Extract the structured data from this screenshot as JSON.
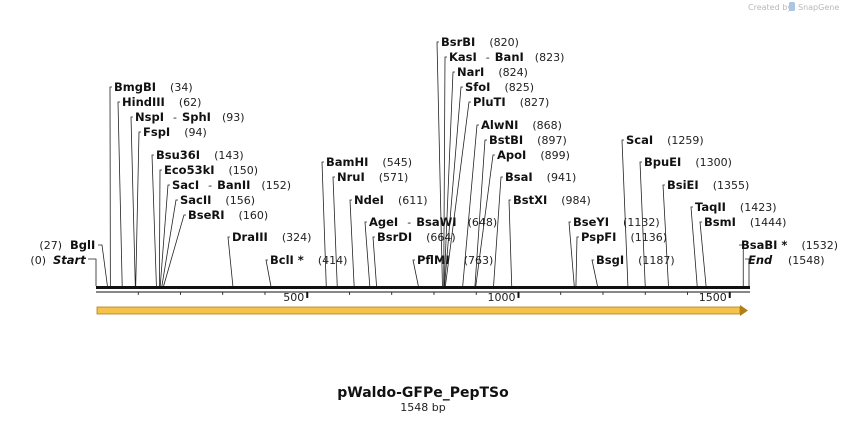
{
  "map": {
    "title": "pWaldo-GFPe_PepTSo",
    "size_label": "1548 bp",
    "total_bp": 1548,
    "credit": "Created by",
    "brand": "SnapGene",
    "start_label": "Start",
    "start_pos": "(0)",
    "end_label": "End",
    "end_pos": "(1548)",
    "ticks": [
      {
        "value": 500,
        "label": "500"
      },
      {
        "value": 1000,
        "label": "1000"
      },
      {
        "value": 1500,
        "label": "1500"
      }
    ],
    "feature_color": "#f5c24b",
    "sites": [
      {
        "name": "BglI",
        "extra": "",
        "pos_label": "(27)",
        "bp": 27
      },
      {
        "name": "BmgBI",
        "extra": "",
        "pos_label": "(34)",
        "bp": 34
      },
      {
        "name": "HindIII",
        "extra": "",
        "pos_label": "(62)",
        "bp": 62
      },
      {
        "name": "NspI",
        "extra": "SphI",
        "pos_label": "(93)",
        "bp": 93
      },
      {
        "name": "FspI",
        "extra": "",
        "pos_label": "(94)",
        "bp": 94
      },
      {
        "name": "Bsu36I",
        "extra": "",
        "pos_label": "(143)",
        "bp": 143
      },
      {
        "name": "Eco53kI",
        "extra": "",
        "pos_label": "(150)",
        "bp": 150
      },
      {
        "name": "SacI",
        "extra": "BanII",
        "pos_label": "(152)",
        "bp": 152
      },
      {
        "name": "SacII",
        "extra": "",
        "pos_label": "(156)",
        "bp": 156
      },
      {
        "name": "BseRI",
        "extra": "",
        "pos_label": "(160)",
        "bp": 160
      },
      {
        "name": "DraIII",
        "extra": "",
        "pos_label": "(324)",
        "bp": 324
      },
      {
        "name": "BclI *",
        "extra": "",
        "pos_label": "(414)",
        "bp": 414
      },
      {
        "name": "BamHI",
        "extra": "",
        "pos_label": "(545)",
        "bp": 545
      },
      {
        "name": "NruI",
        "extra": "",
        "pos_label": "(571)",
        "bp": 571
      },
      {
        "name": "NdeI",
        "extra": "",
        "pos_label": "(611)",
        "bp": 611
      },
      {
        "name": "AgeI",
        "extra": "BsaWI",
        "pos_label": "(648)",
        "bp": 648
      },
      {
        "name": "BsrDI",
        "extra": "",
        "pos_label": "(664)",
        "bp": 664
      },
      {
        "name": "PflMI",
        "extra": "",
        "pos_label": "(763)",
        "bp": 763
      },
      {
        "name": "BsrBI",
        "extra": "",
        "pos_label": "(820)",
        "bp": 820
      },
      {
        "name": "KasI",
        "extra": "BanI",
        "pos_label": "(823)",
        "bp": 823
      },
      {
        "name": "NarI",
        "extra": "",
        "pos_label": "(824)",
        "bp": 824
      },
      {
        "name": "SfoI",
        "extra": "",
        "pos_label": "(825)",
        "bp": 825
      },
      {
        "name": "PluTI",
        "extra": "",
        "pos_label": "(827)",
        "bp": 827
      },
      {
        "name": "AlwNI",
        "extra": "",
        "pos_label": "(868)",
        "bp": 868
      },
      {
        "name": "BstBI",
        "extra": "",
        "pos_label": "(897)",
        "bp": 897
      },
      {
        "name": "ApoI",
        "extra": "",
        "pos_label": "(899)",
        "bp": 899
      },
      {
        "name": "BsaI",
        "extra": "",
        "pos_label": "(941)",
        "bp": 941
      },
      {
        "name": "BstXI",
        "extra": "",
        "pos_label": "(984)",
        "bp": 984
      },
      {
        "name": "BseYI",
        "extra": "",
        "pos_label": "(1132)",
        "bp": 1132
      },
      {
        "name": "PspFI",
        "extra": "",
        "pos_label": "(1136)",
        "bp": 1136
      },
      {
        "name": "BsgI",
        "extra": "",
        "pos_label": "(1187)",
        "bp": 1187
      },
      {
        "name": "ScaI",
        "extra": "",
        "pos_label": "(1259)",
        "bp": 1259
      },
      {
        "name": "BpuEI",
        "extra": "",
        "pos_label": "(1300)",
        "bp": 1300
      },
      {
        "name": "BsiEI",
        "extra": "",
        "pos_label": "(1355)",
        "bp": 1355
      },
      {
        "name": "TaqII",
        "extra": "",
        "pos_label": "(1423)",
        "bp": 1423
      },
      {
        "name": "BsmI",
        "extra": "",
        "pos_label": "(1444)",
        "bp": 1444
      },
      {
        "name": "BsaBI *",
        "extra": "",
        "pos_label": "(1532)",
        "bp": 1532
      }
    ]
  }
}
